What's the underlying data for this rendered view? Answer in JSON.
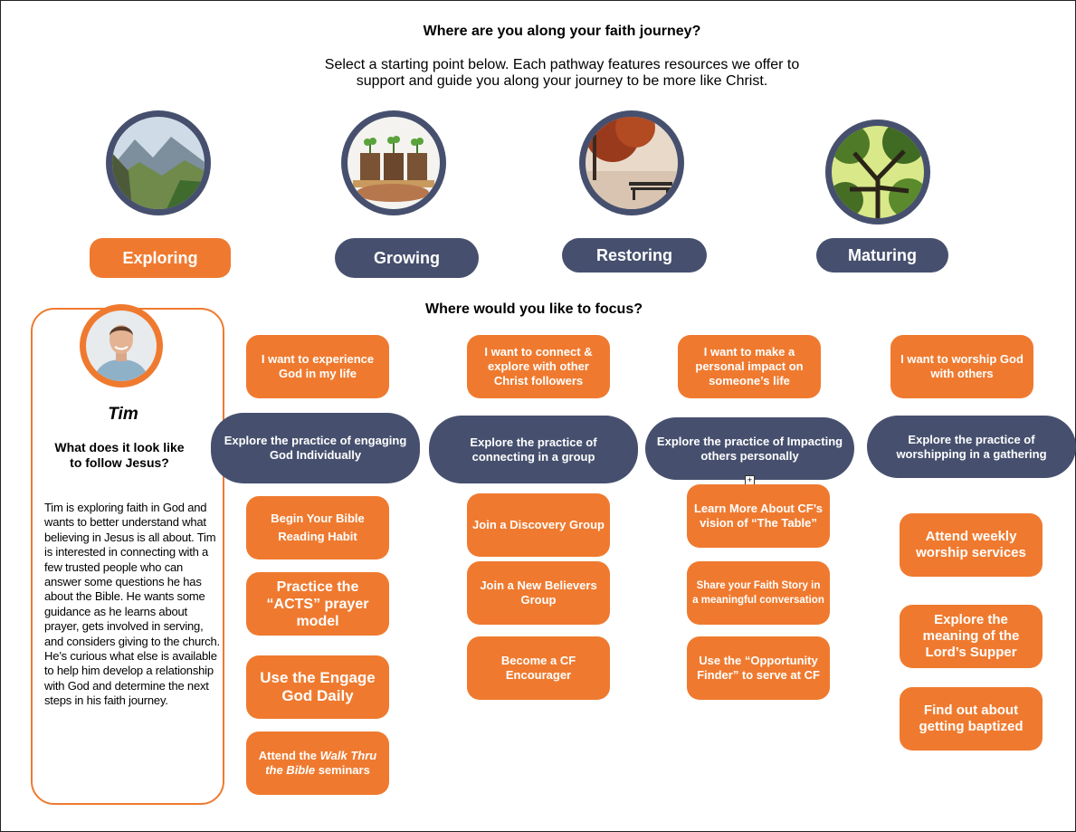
{
  "header": {
    "title": "Where are you along your faith journey?",
    "subtitle_line1": "Select a starting point below. Each pathway features resources we offer to",
    "subtitle_line2": "support and guide you along your journey to be more like Christ."
  },
  "pathways": [
    {
      "label": "Exploring",
      "image": "mountain-valley-image",
      "selected": true
    },
    {
      "label": "Growing",
      "image": "seedlings-image",
      "selected": false
    },
    {
      "label": "Restoring",
      "image": "park-bench-image",
      "selected": false
    },
    {
      "label": "Maturing",
      "image": "tree-canopy-image",
      "selected": false
    }
  ],
  "focus_title": "Where would you like to focus?",
  "profile": {
    "name": "Tim",
    "question_line1": "What does it look like",
    "question_line2": "to follow Jesus?",
    "description": "Tim is exploring faith in God and wants to better understand what believing in Jesus is all about. Tim is interested in connecting with a few trusted people who can answer some questions he has about the Bible. He wants some guidance as he learns about prayer, gets involved in serving, and considers giving to the church. He’s curious what else is available to help him develop a relationship with God and determine the next steps in his faith journey."
  },
  "columns": [
    {
      "focus": "I want to experience God in my life",
      "practice": "Explore the practice of engaging God Individually",
      "resources": [
        "Begin Your Bible Reading Habit",
        "Practice the “ACTS” prayer model",
        "Use the Engage God Daily",
        {
          "pre": "Attend the ",
          "italic": "Walk Thru the Bible",
          "post": " seminars"
        }
      ]
    },
    {
      "focus": "I want to connect & explore with other Christ followers",
      "practice": "Explore the practice of connecting in a group",
      "resources": [
        "Join a Discovery Group",
        "Join a New Believers Group",
        "Become a CF Encourager"
      ]
    },
    {
      "focus": "I want to make a personal impact on someone’s life",
      "practice": "Explore the practice of Impacting others personally",
      "resources": [
        "Learn More About CF’s vision of “The Table”",
        "Share your Faith Story in a meaningful conversation",
        "Use the “Opportunity Finder” to serve at CF"
      ]
    },
    {
      "focus": "I want to worship God with others",
      "practice": "Explore the practice of worshipping in a gathering",
      "resources": [
        "Attend weekly worship services",
        "Explore the meaning of the Lord’s Supper",
        "Find out about getting baptized"
      ]
    }
  ],
  "colors": {
    "orange": "#ef7a2f",
    "slate": "#46506e"
  }
}
